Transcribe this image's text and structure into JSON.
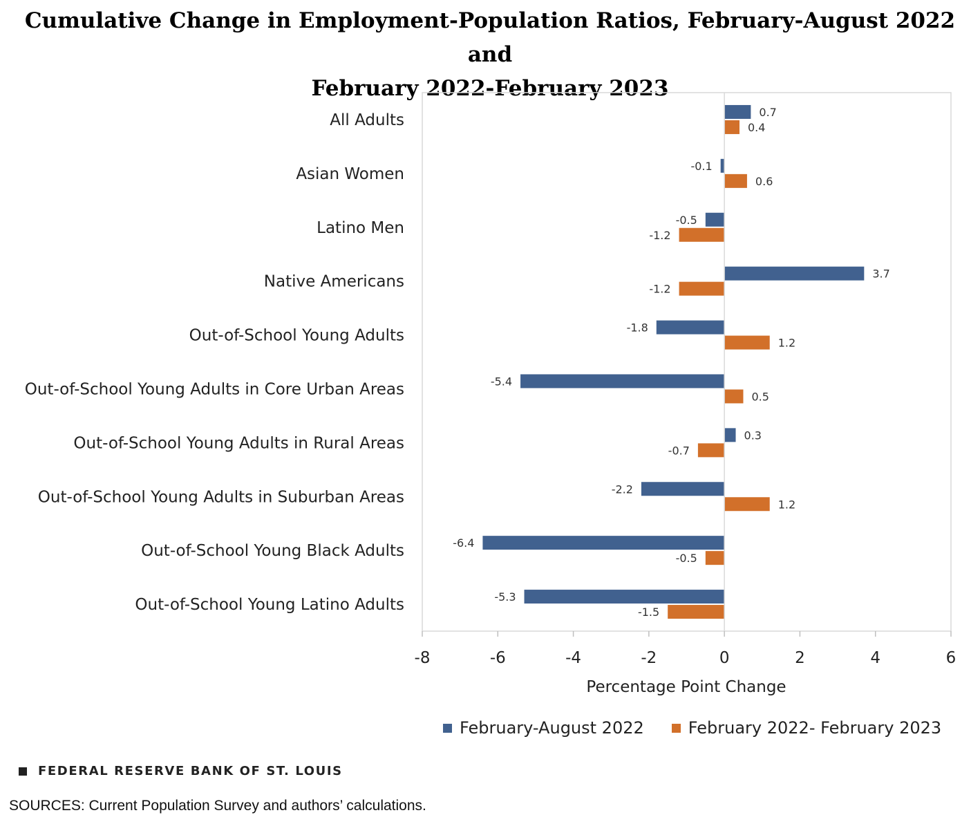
{
  "header": {
    "title_line1": "Cumulative Change in Employment-Population Ratios, February-August 2022 and",
    "title_line2": "February 2022-February 2023"
  },
  "chart_data": {
    "type": "bar",
    "orientation": "horizontal",
    "title": "Cumulative Change in Employment-Population Ratios, February-August 2022 and February 2022-February 2023",
    "xlabel": "Percentage Point Change",
    "ylabel": "",
    "xlim": [
      -8,
      6
    ],
    "xticks": [
      -8,
      -6,
      -4,
      -2,
      0,
      2,
      4,
      6
    ],
    "xtick_labels": [
      "-8",
      "-6",
      "-4",
      "-2",
      "0",
      "2",
      "4",
      "6"
    ],
    "categories": [
      "All Adults",
      "Asian Women",
      "Latino Men",
      "Native Americans",
      "Out-of-School Young Adults",
      "Out-of-School Young Adults in Core Urban Areas",
      "Out-of-School Young Adults in Rural Areas",
      "Out-of-School Young Adults in Suburban Areas",
      "Out-of-School Young Black Adults",
      "Out-of-School Young Latino Adults"
    ],
    "series": [
      {
        "name": "February-August 2022",
        "color": "#41618f",
        "values": [
          0.7,
          -0.1,
          -0.5,
          3.7,
          -1.8,
          -5.4,
          0.3,
          -2.2,
          -6.4,
          -5.3
        ],
        "labels": [
          "0.7",
          "-0.1",
          "-0.5",
          "3.7",
          "-1.8",
          "-5.4",
          "0.3",
          "-2.2",
          "-6.4",
          "-5.3"
        ]
      },
      {
        "name": "February 2022- February 2023",
        "color": "#d2702a",
        "values": [
          0.4,
          0.6,
          -1.2,
          -1.2,
          1.2,
          0.5,
          -0.7,
          1.2,
          -0.5,
          -1.5
        ],
        "labels": [
          "0.4",
          "0.6",
          "-1.2",
          "-1.2",
          "1.2",
          "0.5",
          "-0.7",
          "1.2",
          "-0.5",
          "-1.5"
        ]
      }
    ],
    "grid": false,
    "legend_position": "bottom"
  },
  "legend": {
    "series1_label": "February-August 2022",
    "series2_label": "February 2022- February 2023"
  },
  "footer": {
    "brand": "FEDERAL RESERVE BANK OF ST. LOUIS",
    "sources": "SOURCES: Current Population Survey and authors’ calculations."
  }
}
